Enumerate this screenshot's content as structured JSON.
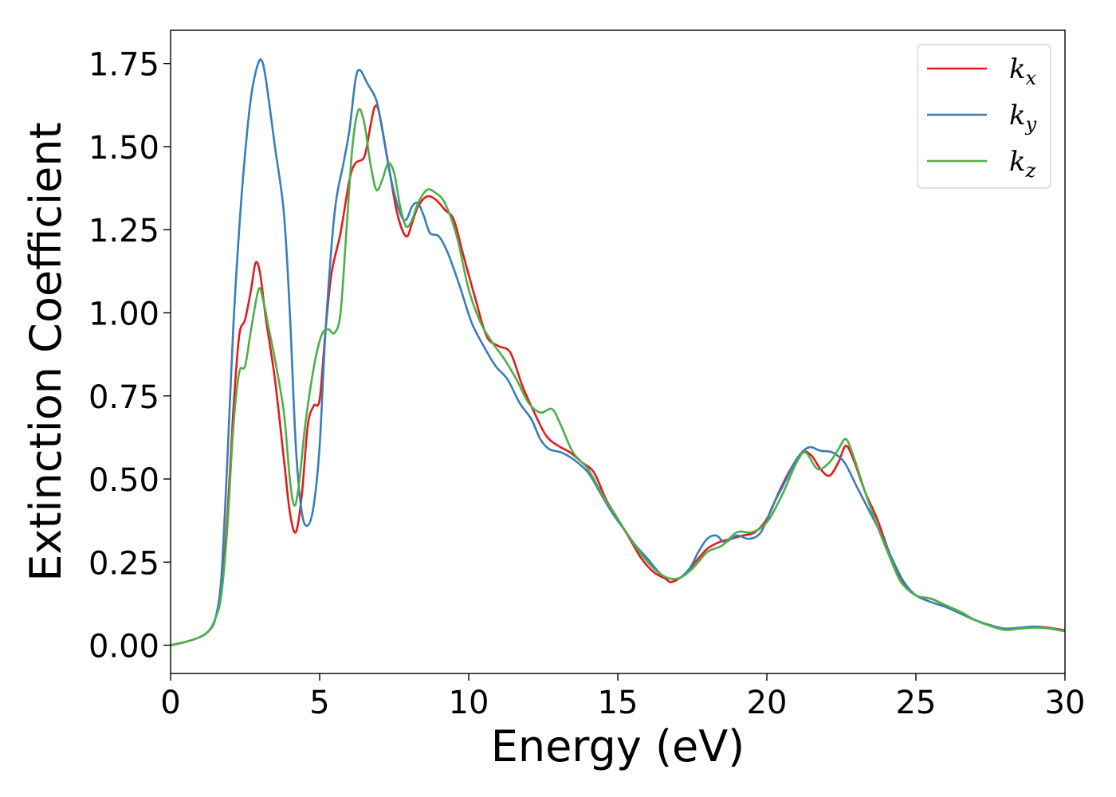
{
  "chart_data": {
    "type": "line",
    "title": "",
    "xlabel": "Energy (eV)",
    "ylabel": "Extinction Coefficient",
    "xlim": [
      0,
      30
    ],
    "ylim": [
      -0.085,
      1.85
    ],
    "xticks": [
      0,
      5,
      10,
      15,
      20,
      25,
      30
    ],
    "xtick_labels": [
      "0",
      "5",
      "10",
      "15",
      "20",
      "25",
      "30"
    ],
    "yticks": [
      0,
      0.25,
      0.5,
      0.75,
      1.0,
      1.25,
      1.5,
      1.75
    ],
    "ytick_labels": [
      "0.00",
      "0.25",
      "0.50",
      "0.75",
      "1.00",
      "1.25",
      "1.50",
      "1.75"
    ],
    "grid": false,
    "legend_position": "top-right",
    "series": [
      {
        "name": "k_x",
        "label_base": "k",
        "label_sub": "x",
        "color": "#e41a1c",
        "points": [
          [
            0,
            0
          ],
          [
            0.5,
            0.01
          ],
          [
            1.0,
            0.025
          ],
          [
            1.3,
            0.045
          ],
          [
            1.5,
            0.08
          ],
          [
            1.7,
            0.16
          ],
          [
            1.9,
            0.38
          ],
          [
            2.1,
            0.7
          ],
          [
            2.3,
            0.93
          ],
          [
            2.5,
            0.98
          ],
          [
            2.7,
            1.07
          ],
          [
            2.85,
            1.15
          ],
          [
            3.0,
            1.12
          ],
          [
            3.2,
            0.98
          ],
          [
            3.5,
            0.8
          ],
          [
            3.8,
            0.56
          ],
          [
            4.0,
            0.4
          ],
          [
            4.2,
            0.34
          ],
          [
            4.4,
            0.45
          ],
          [
            4.6,
            0.66
          ],
          [
            4.8,
            0.72
          ],
          [
            5.0,
            0.74
          ],
          [
            5.2,
            0.95
          ],
          [
            5.4,
            1.12
          ],
          [
            5.7,
            1.24
          ],
          [
            6.0,
            1.4
          ],
          [
            6.2,
            1.45
          ],
          [
            6.5,
            1.47
          ],
          [
            6.7,
            1.56
          ],
          [
            6.85,
            1.62
          ],
          [
            7.0,
            1.6
          ],
          [
            7.3,
            1.45
          ],
          [
            7.6,
            1.3
          ],
          [
            7.9,
            1.23
          ],
          [
            8.1,
            1.27
          ],
          [
            8.3,
            1.32
          ],
          [
            8.6,
            1.35
          ],
          [
            8.9,
            1.34
          ],
          [
            9.2,
            1.31
          ],
          [
            9.5,
            1.28
          ],
          [
            9.8,
            1.18
          ],
          [
            10.2,
            1.05
          ],
          [
            10.6,
            0.93
          ],
          [
            11.0,
            0.9
          ],
          [
            11.4,
            0.88
          ],
          [
            11.8,
            0.78
          ],
          [
            12.2,
            0.7
          ],
          [
            12.6,
            0.63
          ],
          [
            13.0,
            0.6
          ],
          [
            13.4,
            0.58
          ],
          [
            13.8,
            0.55
          ],
          [
            14.2,
            0.52
          ],
          [
            14.6,
            0.44
          ],
          [
            15.0,
            0.38
          ],
          [
            15.4,
            0.32
          ],
          [
            15.8,
            0.26
          ],
          [
            16.2,
            0.22
          ],
          [
            16.6,
            0.2
          ],
          [
            16.8,
            0.19
          ],
          [
            17.2,
            0.21
          ],
          [
            17.6,
            0.25
          ],
          [
            18.0,
            0.29
          ],
          [
            18.4,
            0.31
          ],
          [
            18.8,
            0.32
          ],
          [
            19.2,
            0.33
          ],
          [
            19.6,
            0.34
          ],
          [
            20.0,
            0.38
          ],
          [
            20.4,
            0.46
          ],
          [
            20.8,
            0.53
          ],
          [
            21.2,
            0.58
          ],
          [
            21.5,
            0.57
          ],
          [
            21.8,
            0.53
          ],
          [
            22.1,
            0.51
          ],
          [
            22.4,
            0.55
          ],
          [
            22.65,
            0.6
          ],
          [
            22.9,
            0.56
          ],
          [
            23.3,
            0.46
          ],
          [
            23.7,
            0.38
          ],
          [
            24.1,
            0.28
          ],
          [
            24.5,
            0.2
          ],
          [
            25.0,
            0.15
          ],
          [
            25.5,
            0.14
          ],
          [
            26.0,
            0.12
          ],
          [
            26.5,
            0.1
          ],
          [
            27.0,
            0.075
          ],
          [
            27.5,
            0.06
          ],
          [
            28.0,
            0.048
          ],
          [
            28.5,
            0.052
          ],
          [
            29.0,
            0.056
          ],
          [
            29.5,
            0.052
          ],
          [
            30.0,
            0.045
          ]
        ]
      },
      {
        "name": "k_y",
        "label_base": "k",
        "label_sub": "y",
        "color": "#377eb8",
        "points": [
          [
            0,
            0
          ],
          [
            0.5,
            0.01
          ],
          [
            1.0,
            0.025
          ],
          [
            1.3,
            0.045
          ],
          [
            1.5,
            0.08
          ],
          [
            1.7,
            0.2
          ],
          [
            1.9,
            0.55
          ],
          [
            2.1,
            0.95
          ],
          [
            2.3,
            1.25
          ],
          [
            2.5,
            1.48
          ],
          [
            2.7,
            1.65
          ],
          [
            2.9,
            1.74
          ],
          [
            3.05,
            1.76
          ],
          [
            3.2,
            1.7
          ],
          [
            3.5,
            1.5
          ],
          [
            3.8,
            1.3
          ],
          [
            4.0,
            1.0
          ],
          [
            4.2,
            0.6
          ],
          [
            4.4,
            0.4
          ],
          [
            4.6,
            0.36
          ],
          [
            4.8,
            0.42
          ],
          [
            5.0,
            0.6
          ],
          [
            5.2,
            0.95
          ],
          [
            5.5,
            1.3
          ],
          [
            5.8,
            1.45
          ],
          [
            6.0,
            1.55
          ],
          [
            6.2,
            1.7
          ],
          [
            6.35,
            1.73
          ],
          [
            6.6,
            1.69
          ],
          [
            6.9,
            1.64
          ],
          [
            7.1,
            1.55
          ],
          [
            7.4,
            1.4
          ],
          [
            7.7,
            1.3
          ],
          [
            7.9,
            1.28
          ],
          [
            8.1,
            1.32
          ],
          [
            8.3,
            1.33
          ],
          [
            8.5,
            1.29
          ],
          [
            8.7,
            1.24
          ],
          [
            9.0,
            1.23
          ],
          [
            9.3,
            1.18
          ],
          [
            9.7,
            1.08
          ],
          [
            10.1,
            0.97
          ],
          [
            10.5,
            0.9
          ],
          [
            10.9,
            0.84
          ],
          [
            11.3,
            0.8
          ],
          [
            11.7,
            0.73
          ],
          [
            12.1,
            0.68
          ],
          [
            12.4,
            0.62
          ],
          [
            12.7,
            0.59
          ],
          [
            13.1,
            0.58
          ],
          [
            13.5,
            0.56
          ],
          [
            14.0,
            0.52
          ],
          [
            14.4,
            0.46
          ],
          [
            14.8,
            0.4
          ],
          [
            15.2,
            0.35
          ],
          [
            15.6,
            0.3
          ],
          [
            16.0,
            0.26
          ],
          [
            16.5,
            0.21
          ],
          [
            17.0,
            0.2
          ],
          [
            17.4,
            0.23
          ],
          [
            17.7,
            0.28
          ],
          [
            18.0,
            0.32
          ],
          [
            18.3,
            0.33
          ],
          [
            18.6,
            0.31
          ],
          [
            19.0,
            0.33
          ],
          [
            19.4,
            0.32
          ],
          [
            19.8,
            0.34
          ],
          [
            20.2,
            0.42
          ],
          [
            20.6,
            0.49
          ],
          [
            21.0,
            0.56
          ],
          [
            21.4,
            0.595
          ],
          [
            21.8,
            0.585
          ],
          [
            22.2,
            0.58
          ],
          [
            22.6,
            0.55
          ],
          [
            23.0,
            0.48
          ],
          [
            23.4,
            0.41
          ],
          [
            23.8,
            0.34
          ],
          [
            24.2,
            0.26
          ],
          [
            24.6,
            0.19
          ],
          [
            25.0,
            0.15
          ],
          [
            25.5,
            0.13
          ],
          [
            26.0,
            0.115
          ],
          [
            26.5,
            0.095
          ],
          [
            27.0,
            0.075
          ],
          [
            27.5,
            0.06
          ],
          [
            28.0,
            0.05
          ],
          [
            28.5,
            0.053
          ],
          [
            29.0,
            0.056
          ],
          [
            29.5,
            0.05
          ],
          [
            30.0,
            0.042
          ]
        ]
      },
      {
        "name": "k_z",
        "label_base": "k",
        "label_sub": "z",
        "color": "#4daf4a",
        "points": [
          [
            0,
            0
          ],
          [
            0.5,
            0.01
          ],
          [
            1.0,
            0.025
          ],
          [
            1.3,
            0.045
          ],
          [
            1.5,
            0.08
          ],
          [
            1.7,
            0.15
          ],
          [
            1.9,
            0.35
          ],
          [
            2.1,
            0.65
          ],
          [
            2.3,
            0.82
          ],
          [
            2.5,
            0.84
          ],
          [
            2.7,
            0.95
          ],
          [
            2.95,
            1.07
          ],
          [
            3.1,
            1.04
          ],
          [
            3.3,
            0.95
          ],
          [
            3.5,
            0.86
          ],
          [
            3.8,
            0.7
          ],
          [
            4.0,
            0.5
          ],
          [
            4.15,
            0.42
          ],
          [
            4.3,
            0.48
          ],
          [
            4.5,
            0.65
          ],
          [
            4.7,
            0.78
          ],
          [
            4.9,
            0.88
          ],
          [
            5.1,
            0.94
          ],
          [
            5.3,
            0.95
          ],
          [
            5.5,
            0.94
          ],
          [
            5.7,
            1.0
          ],
          [
            5.9,
            1.25
          ],
          [
            6.1,
            1.5
          ],
          [
            6.3,
            1.61
          ],
          [
            6.5,
            1.57
          ],
          [
            6.7,
            1.45
          ],
          [
            6.9,
            1.37
          ],
          [
            7.1,
            1.4
          ],
          [
            7.3,
            1.45
          ],
          [
            7.5,
            1.42
          ],
          [
            7.7,
            1.32
          ],
          [
            7.9,
            1.26
          ],
          [
            8.1,
            1.28
          ],
          [
            8.3,
            1.33
          ],
          [
            8.6,
            1.37
          ],
          [
            8.9,
            1.36
          ],
          [
            9.2,
            1.33
          ],
          [
            9.6,
            1.23
          ],
          [
            10.0,
            1.07
          ],
          [
            10.4,
            0.97
          ],
          [
            10.8,
            0.91
          ],
          [
            11.2,
            0.86
          ],
          [
            11.6,
            0.8
          ],
          [
            12.0,
            0.73
          ],
          [
            12.4,
            0.7
          ],
          [
            12.8,
            0.71
          ],
          [
            13.1,
            0.66
          ],
          [
            13.5,
            0.58
          ],
          [
            14.0,
            0.53
          ],
          [
            14.5,
            0.45
          ],
          [
            15.0,
            0.38
          ],
          [
            15.5,
            0.31
          ],
          [
            16.0,
            0.25
          ],
          [
            16.5,
            0.21
          ],
          [
            17.0,
            0.2
          ],
          [
            17.5,
            0.23
          ],
          [
            18.0,
            0.28
          ],
          [
            18.5,
            0.3
          ],
          [
            19.0,
            0.34
          ],
          [
            19.5,
            0.34
          ],
          [
            20.0,
            0.37
          ],
          [
            20.5,
            0.45
          ],
          [
            21.0,
            0.55
          ],
          [
            21.3,
            0.58
          ],
          [
            21.7,
            0.53
          ],
          [
            22.1,
            0.55
          ],
          [
            22.4,
            0.59
          ],
          [
            22.65,
            0.62
          ],
          [
            22.9,
            0.57
          ],
          [
            23.3,
            0.46
          ],
          [
            23.7,
            0.36
          ],
          [
            24.1,
            0.27
          ],
          [
            24.5,
            0.19
          ],
          [
            25.0,
            0.15
          ],
          [
            25.5,
            0.14
          ],
          [
            26.0,
            0.12
          ],
          [
            26.5,
            0.1
          ],
          [
            27.0,
            0.075
          ],
          [
            27.5,
            0.058
          ],
          [
            28.0,
            0.046
          ],
          [
            28.5,
            0.05
          ],
          [
            29.0,
            0.053
          ],
          [
            29.5,
            0.05
          ],
          [
            30.0,
            0.042
          ]
        ]
      }
    ]
  }
}
